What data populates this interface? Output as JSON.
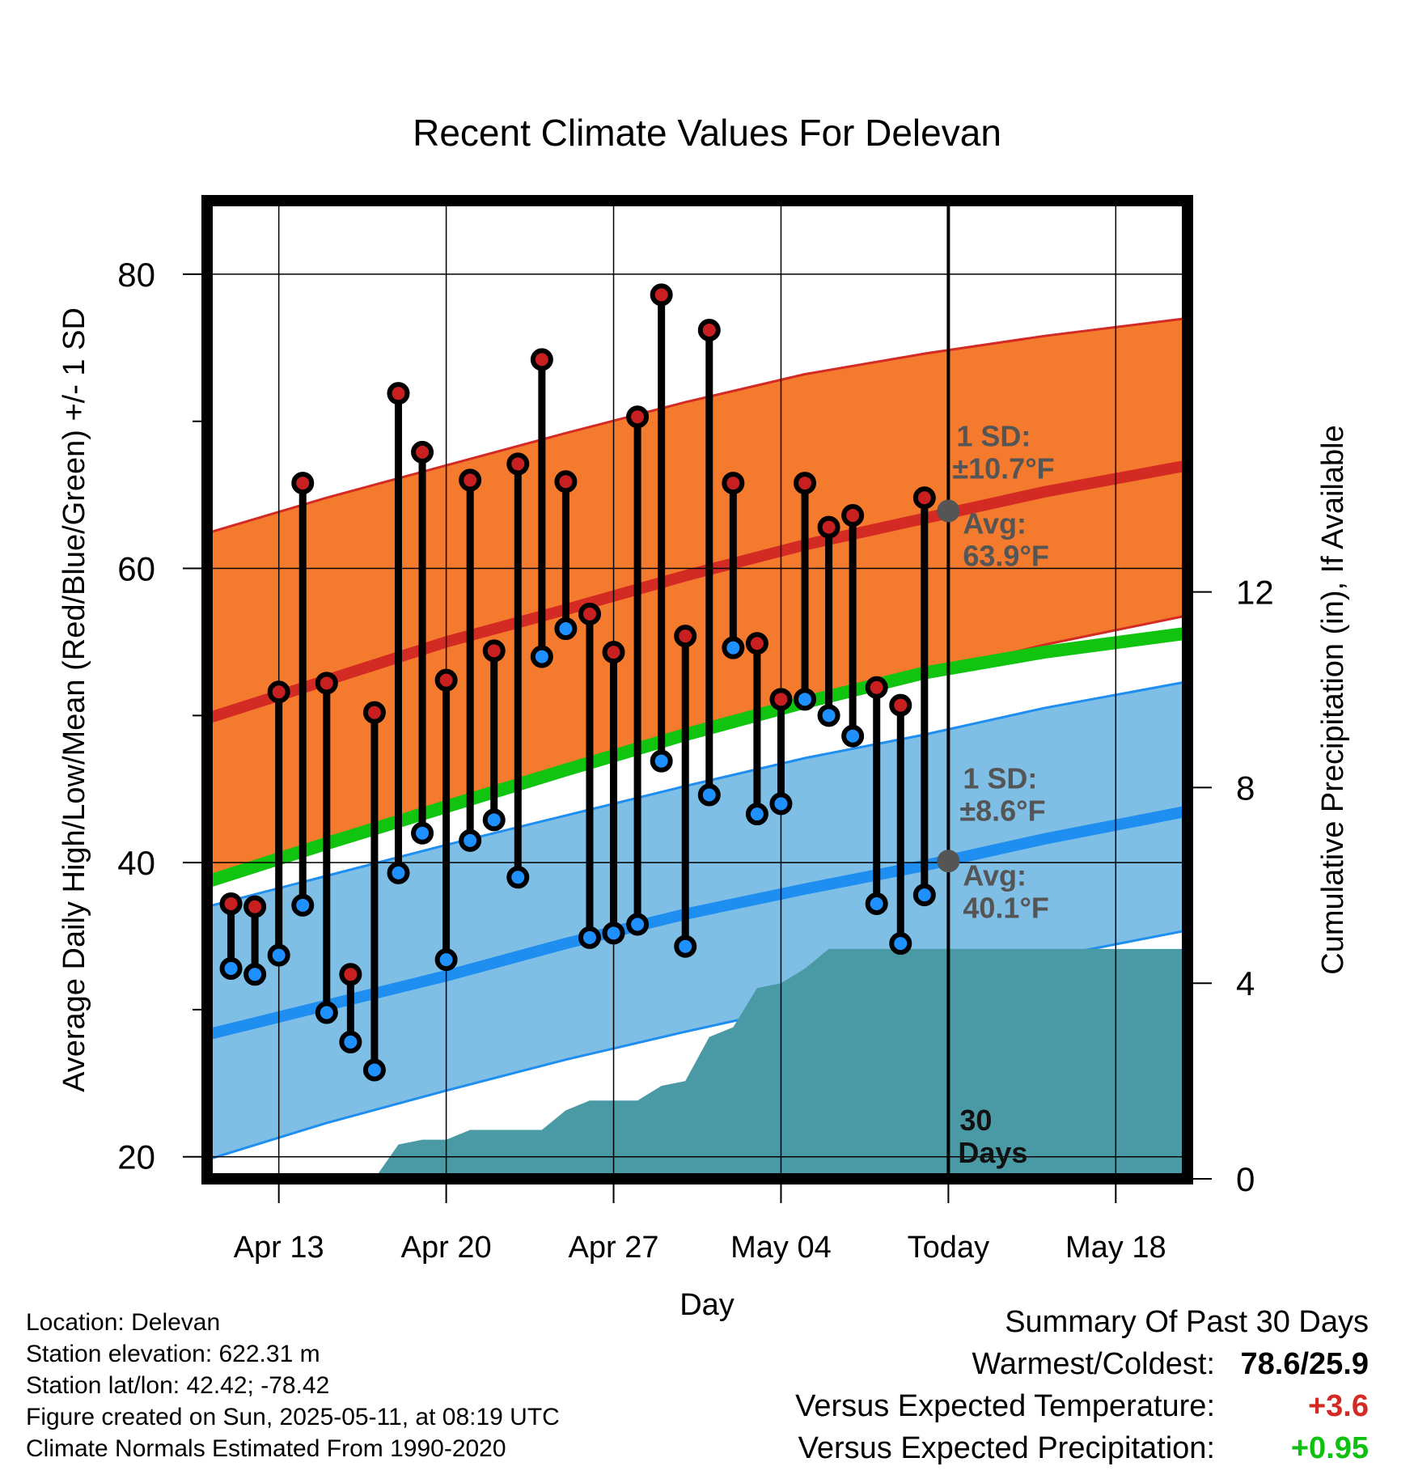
{
  "chart_data": {
    "type": "line",
    "title": "Recent Climate Values For Delevan",
    "xlabel": "Day",
    "ylabel": "Average Daily High/Low/Mean (Red/Blue/Green) +/- 1 SD",
    "y2label": "Cumulative Precipitation (in), If Available",
    "ylim": [
      18.5,
      85
    ],
    "y2lim": [
      0,
      20
    ],
    "y_ticks": [
      "20",
      "40",
      "60",
      "80"
    ],
    "y2_ticks": [
      "0",
      "4",
      "8",
      "12"
    ],
    "x_ticks": [
      "Apr 13",
      "Apr 20",
      "Apr 27",
      "May 04",
      "Today",
      "May 18"
    ],
    "x_range_days": [
      "2025-04-10",
      "2025-05-21"
    ],
    "grid": true,
    "normals": {
      "dates": [
        "2025-04-10",
        "2025-04-15",
        "2025-04-20",
        "2025-04-25",
        "2025-04-30",
        "2025-05-05",
        "2025-05-10",
        "2025-05-15",
        "2025-05-21"
      ],
      "high_mean": [
        49.8,
        52.4,
        55.0,
        57.2,
        59.5,
        61.6,
        63.4,
        65.2,
        67.0
      ],
      "high_upper": [
        62.4,
        64.8,
        67.0,
        69.2,
        71.3,
        73.2,
        74.6,
        75.8,
        77.0
      ],
      "high_lower": [
        39.0,
        41.6,
        44.0,
        46.5,
        48.8,
        50.9,
        52.8,
        54.8,
        56.8
      ],
      "mean": [
        38.7,
        41.3,
        43.8,
        46.3,
        48.7,
        50.9,
        52.9,
        54.3,
        55.6
      ],
      "low_mean": [
        28.3,
        30.3,
        32.3,
        34.5,
        36.5,
        38.2,
        39.8,
        41.6,
        43.5
      ],
      "low_upper": [
        37.0,
        39.1,
        41.2,
        43.2,
        45.2,
        47.1,
        48.7,
        50.5,
        52.3
      ],
      "low_lower": [
        19.8,
        22.3,
        24.5,
        26.6,
        28.5,
        30.3,
        31.9,
        33.5,
        35.4
      ]
    },
    "observations": {
      "dates": [
        "2025-04-11",
        "2025-04-12",
        "2025-04-13",
        "2025-04-14",
        "2025-04-15",
        "2025-04-16",
        "2025-04-17",
        "2025-04-18",
        "2025-04-19",
        "2025-04-20",
        "2025-04-21",
        "2025-04-22",
        "2025-04-23",
        "2025-04-24",
        "2025-04-25",
        "2025-04-26",
        "2025-04-27",
        "2025-04-28",
        "2025-04-29",
        "2025-04-30",
        "2025-05-01",
        "2025-05-02",
        "2025-05-03",
        "2025-05-04",
        "2025-05-05",
        "2025-05-06",
        "2025-05-07",
        "2025-05-08",
        "2025-05-09",
        "2025-05-10"
      ],
      "high": [
        37.2,
        37.0,
        51.6,
        65.8,
        52.2,
        32.4,
        50.2,
        71.9,
        67.9,
        52.4,
        66.0,
        54.4,
        67.1,
        74.2,
        65.9,
        56.9,
        54.3,
        70.3,
        78.6,
        55.4,
        76.2,
        65.8,
        54.9,
        51.1,
        65.8,
        62.8,
        63.6,
        51.9,
        50.7,
        64.8
      ],
      "low": [
        32.8,
        32.4,
        33.7,
        37.1,
        29.8,
        27.8,
        25.9,
        39.3,
        42.0,
        33.4,
        41.5,
        42.9,
        39.0,
        54.0,
        55.9,
        34.9,
        35.2,
        35.8,
        46.9,
        34.3,
        44.6,
        54.6,
        43.3,
        44.0,
        51.1,
        50.0,
        48.6,
        37.2,
        34.5,
        37.8
      ]
    },
    "precipitation": {
      "dates": [
        "2025-04-17",
        "2025-04-18",
        "2025-04-19",
        "2025-04-20",
        "2025-04-21",
        "2025-04-22",
        "2025-04-23",
        "2025-04-24",
        "2025-04-25",
        "2025-04-26",
        "2025-04-27",
        "2025-04-28",
        "2025-04-29",
        "2025-04-30",
        "2025-05-01",
        "2025-05-02",
        "2025-05-03",
        "2025-05-04",
        "2025-05-05",
        "2025-05-06",
        "2025-05-21"
      ],
      "cumulative": [
        0.0,
        0.7,
        0.8,
        0.8,
        1.0,
        1.0,
        1.0,
        1.0,
        1.4,
        1.6,
        1.6,
        1.6,
        1.9,
        2.0,
        2.9,
        3.1,
        3.9,
        4.0,
        4.3,
        4.7,
        4.7
      ]
    },
    "today": {
      "date": "2025-05-11",
      "label": "Today",
      "window_label_1": "30",
      "window_label_2": "Days",
      "high_avg": 63.9,
      "low_avg": 40.1,
      "high_sd_label_1": "1 SD:",
      "high_sd_label_2": "±10.7°F",
      "high_avg_label_1": "Avg:",
      "high_avg_label_2": "63.9°F",
      "low_sd_label_1": "1 SD:",
      "low_sd_label_2": "±8.6°F",
      "low_avg_label_1": "Avg:",
      "low_avg_label_2": "40.1°F"
    },
    "colors": {
      "high_band": "#f47a2e",
      "high_line": "#d42a24",
      "low_band": "#7fbfe6",
      "low_line": "#1e8ef0",
      "mean_line": "#10c410",
      "precip": "#4a9aa5",
      "high_marker": "#c82020",
      "low_marker": "#1e90ff",
      "annotation": "#555555"
    }
  },
  "footer": {
    "location": "Location: Delevan",
    "elevation": "Station elevation: 622.31 m",
    "latlon": "Station lat/lon: 42.42; -78.42",
    "created": "Figure created on Sun, 2025-05-11, at 08:19 UTC",
    "normals": "Climate Normals Estimated From 1990-2020"
  },
  "summary": {
    "title": "Summary Of Past 30 Days",
    "warmest_label": "Warmest/Coldest:",
    "warmest_value": "78.6/25.9",
    "temp_label": "Versus Expected Temperature:",
    "temp_value": "+3.6",
    "temp_color": "#d42a24",
    "precip_label": "Versus Expected Precipitation:",
    "precip_value": "+0.95",
    "precip_color": "#10c010"
  }
}
